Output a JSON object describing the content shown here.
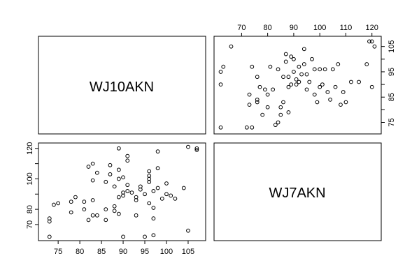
{
  "chart_data": {
    "type": "scatter",
    "layout": "pairs",
    "variables": [
      "WJ10AKN",
      "WJ7AKN"
    ],
    "axes": {
      "WJ10AKN": {
        "ticks": [
          70,
          80,
          90,
          100,
          110,
          120
        ],
        "range": [
          62,
          121
        ]
      },
      "WJ7AKN": {
        "ticks": [
          75,
          80,
          85,
          90,
          95,
          100,
          105
        ],
        "range": [
          72,
          107.5
        ]
      }
    },
    "points": [
      {
        "wj10": 62,
        "wj7": 73
      },
      {
        "wj10": 62,
        "wj7": 90
      },
      {
        "wj10": 62,
        "wj7": 95
      },
      {
        "wj10": 63,
        "wj7": 97
      },
      {
        "wj10": 66,
        "wj7": 105
      },
      {
        "wj10": 72,
        "wj7": 73
      },
      {
        "wj10": 73,
        "wj7": 82
      },
      {
        "wj10": 73,
        "wj7": 86
      },
      {
        "wj10": 74,
        "wj7": 73
      },
      {
        "wj10": 74,
        "wj7": 97
      },
      {
        "wj10": 76,
        "wj7": 83
      },
      {
        "wj10": 76,
        "wj7": 84
      },
      {
        "wj10": 76,
        "wj7": 93
      },
      {
        "wj10": 77,
        "wj7": 89
      },
      {
        "wj10": 78,
        "wj7": 78
      },
      {
        "wj10": 79,
        "wj7": 88
      },
      {
        "wj10": 80,
        "wj7": 81
      },
      {
        "wj10": 80,
        "wj7": 86
      },
      {
        "wj10": 81,
        "wj7": 97
      },
      {
        "wj10": 82,
        "wj7": 88
      },
      {
        "wj10": 83,
        "wj7": 74
      },
      {
        "wj10": 84,
        "wj7": 75
      },
      {
        "wj10": 84,
        "wj7": 96
      },
      {
        "wj10": 85,
        "wj7": 78
      },
      {
        "wj10": 85,
        "wj7": 81
      },
      {
        "wj10": 86,
        "wj7": 83
      },
      {
        "wj10": 86,
        "wj7": 93
      },
      {
        "wj10": 87,
        "wj7": 99
      },
      {
        "wj10": 87,
        "wj7": 102
      },
      {
        "wj10": 88,
        "wj7": 79
      },
      {
        "wj10": 88,
        "wj7": 89
      },
      {
        "wj10": 88,
        "wj7": 93
      },
      {
        "wj10": 89,
        "wj7": 90
      },
      {
        "wj10": 89,
        "wj7": 101
      },
      {
        "wj10": 90,
        "wj7": 95
      },
      {
        "wj10": 90,
        "wj7": 100
      },
      {
        "wj10": 91,
        "wj7": 90
      },
      {
        "wj10": 91,
        "wj7": 92
      },
      {
        "wj10": 92,
        "wj7": 91
      },
      {
        "wj10": 92,
        "wj7": 97
      },
      {
        "wj10": 93,
        "wj7": 94
      },
      {
        "wj10": 94,
        "wj7": 98
      },
      {
        "wj10": 94,
        "wj7": 104
      },
      {
        "wj10": 95,
        "wj7": 88
      },
      {
        "wj10": 95,
        "wj7": 94
      },
      {
        "wj10": 96,
        "wj7": 91
      },
      {
        "wj10": 97,
        "wj7": 100
      },
      {
        "wj10": 98,
        "wj7": 86
      },
      {
        "wj10": 98,
        "wj7": 96
      },
      {
        "wj10": 99,
        "wj7": 83
      },
      {
        "wj10": 100,
        "wj7": 89
      },
      {
        "wj10": 100,
        "wj7": 96
      },
      {
        "wj10": 101,
        "wj7": 90
      },
      {
        "wj10": 102,
        "wj7": 96
      },
      {
        "wj10": 103,
        "wj7": 87
      },
      {
        "wj10": 104,
        "wj7": 84
      },
      {
        "wj10": 105,
        "wj7": 96
      },
      {
        "wj10": 106,
        "wj7": 89
      },
      {
        "wj10": 107,
        "wj7": 98
      },
      {
        "wj10": 108,
        "wj7": 82
      },
      {
        "wj10": 109,
        "wj7": 87
      },
      {
        "wj10": 110,
        "wj7": 83
      },
      {
        "wj10": 112,
        "wj7": 91
      },
      {
        "wj10": 115,
        "wj7": 91
      },
      {
        "wj10": 118,
        "wj7": 98
      },
      {
        "wj10": 119,
        "wj7": 107
      },
      {
        "wj10": 120,
        "wj7": 107
      },
      {
        "wj10": 121,
        "wj7": 105
      },
      {
        "wj10": 120,
        "wj7": 89
      }
    ]
  }
}
